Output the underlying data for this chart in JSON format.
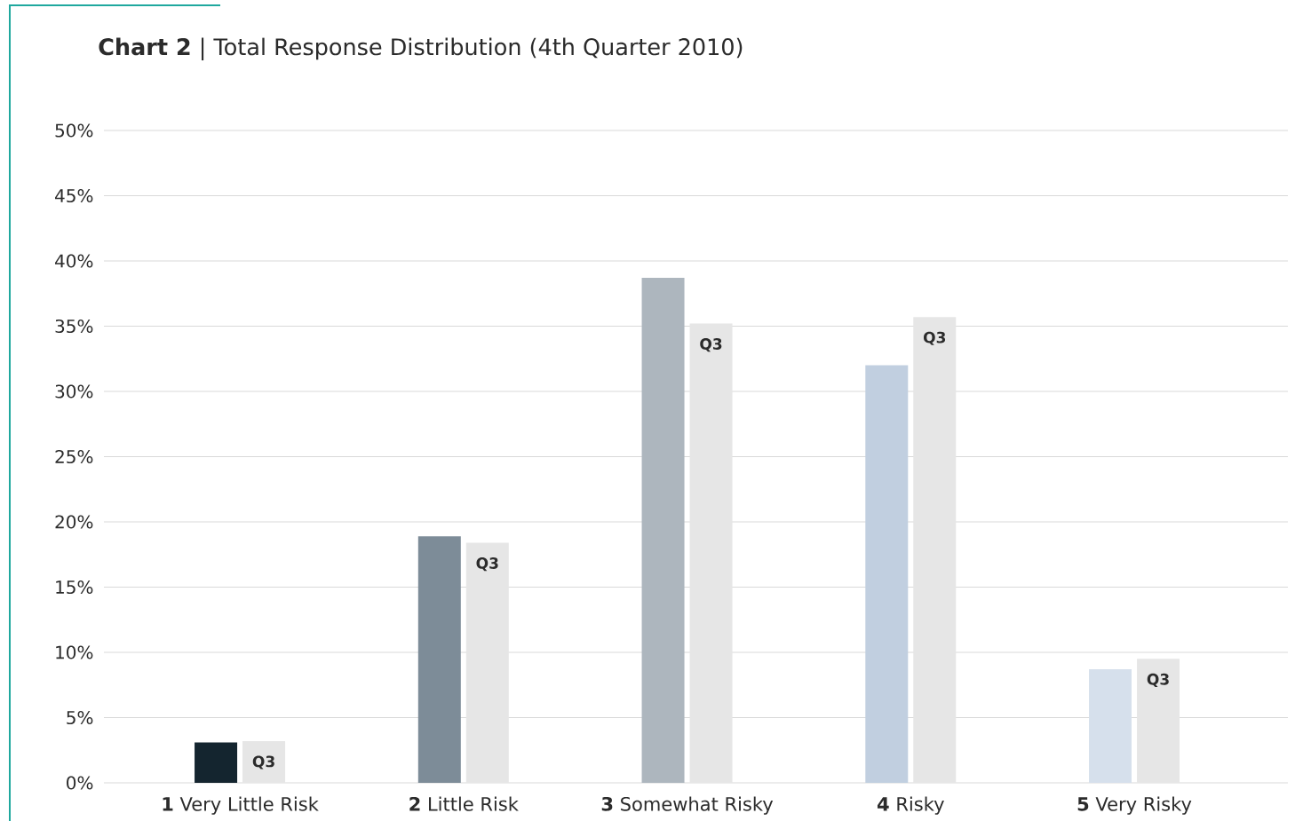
{
  "chart_data": {
    "type": "bar",
    "title": "**Chart 2** | Total Response Distribution (4th Quarter 2010)",
    "categories": [
      "**1** Very Little Risk",
      "**2** Little Risk",
      "**3** Somewhat Risky",
      "**4** Risky",
      "**5** Very Risky"
    ],
    "series": [
      {
        "colors": [
          "#14252f",
          "#7d8c98",
          "#adb6be",
          "#c1cfe0",
          "#d6e0ec"
        ],
        "values": [
          3.1,
          18.9,
          38.7,
          32.0,
          8.7
        ]
      },
      {
        "name": "Q3",
        "color": "#e6e6e6",
        "values": [
          3.2,
          18.4,
          35.2,
          35.7,
          9.5
        ]
      }
    ],
    "ylim": [
      0,
      50
    ],
    "yticks": [
      {
        "value": 0,
        "label": "0%"
      },
      {
        "value": 5,
        "label": "5%"
      },
      {
        "value": 10,
        "label": "10%"
      },
      {
        "value": 15,
        "label": "15%"
      },
      {
        "value": 20,
        "label": "20%"
      },
      {
        "value": 25,
        "label": "25%"
      },
      {
        "value": 30,
        "label": "30%"
      },
      {
        "value": 35,
        "label": "35%"
      },
      {
        "value": 40,
        "label": "40%"
      },
      {
        "value": 45,
        "label": "45%"
      },
      {
        "value": 50,
        "label": "50%"
      }
    ],
    "grid": "y"
  }
}
